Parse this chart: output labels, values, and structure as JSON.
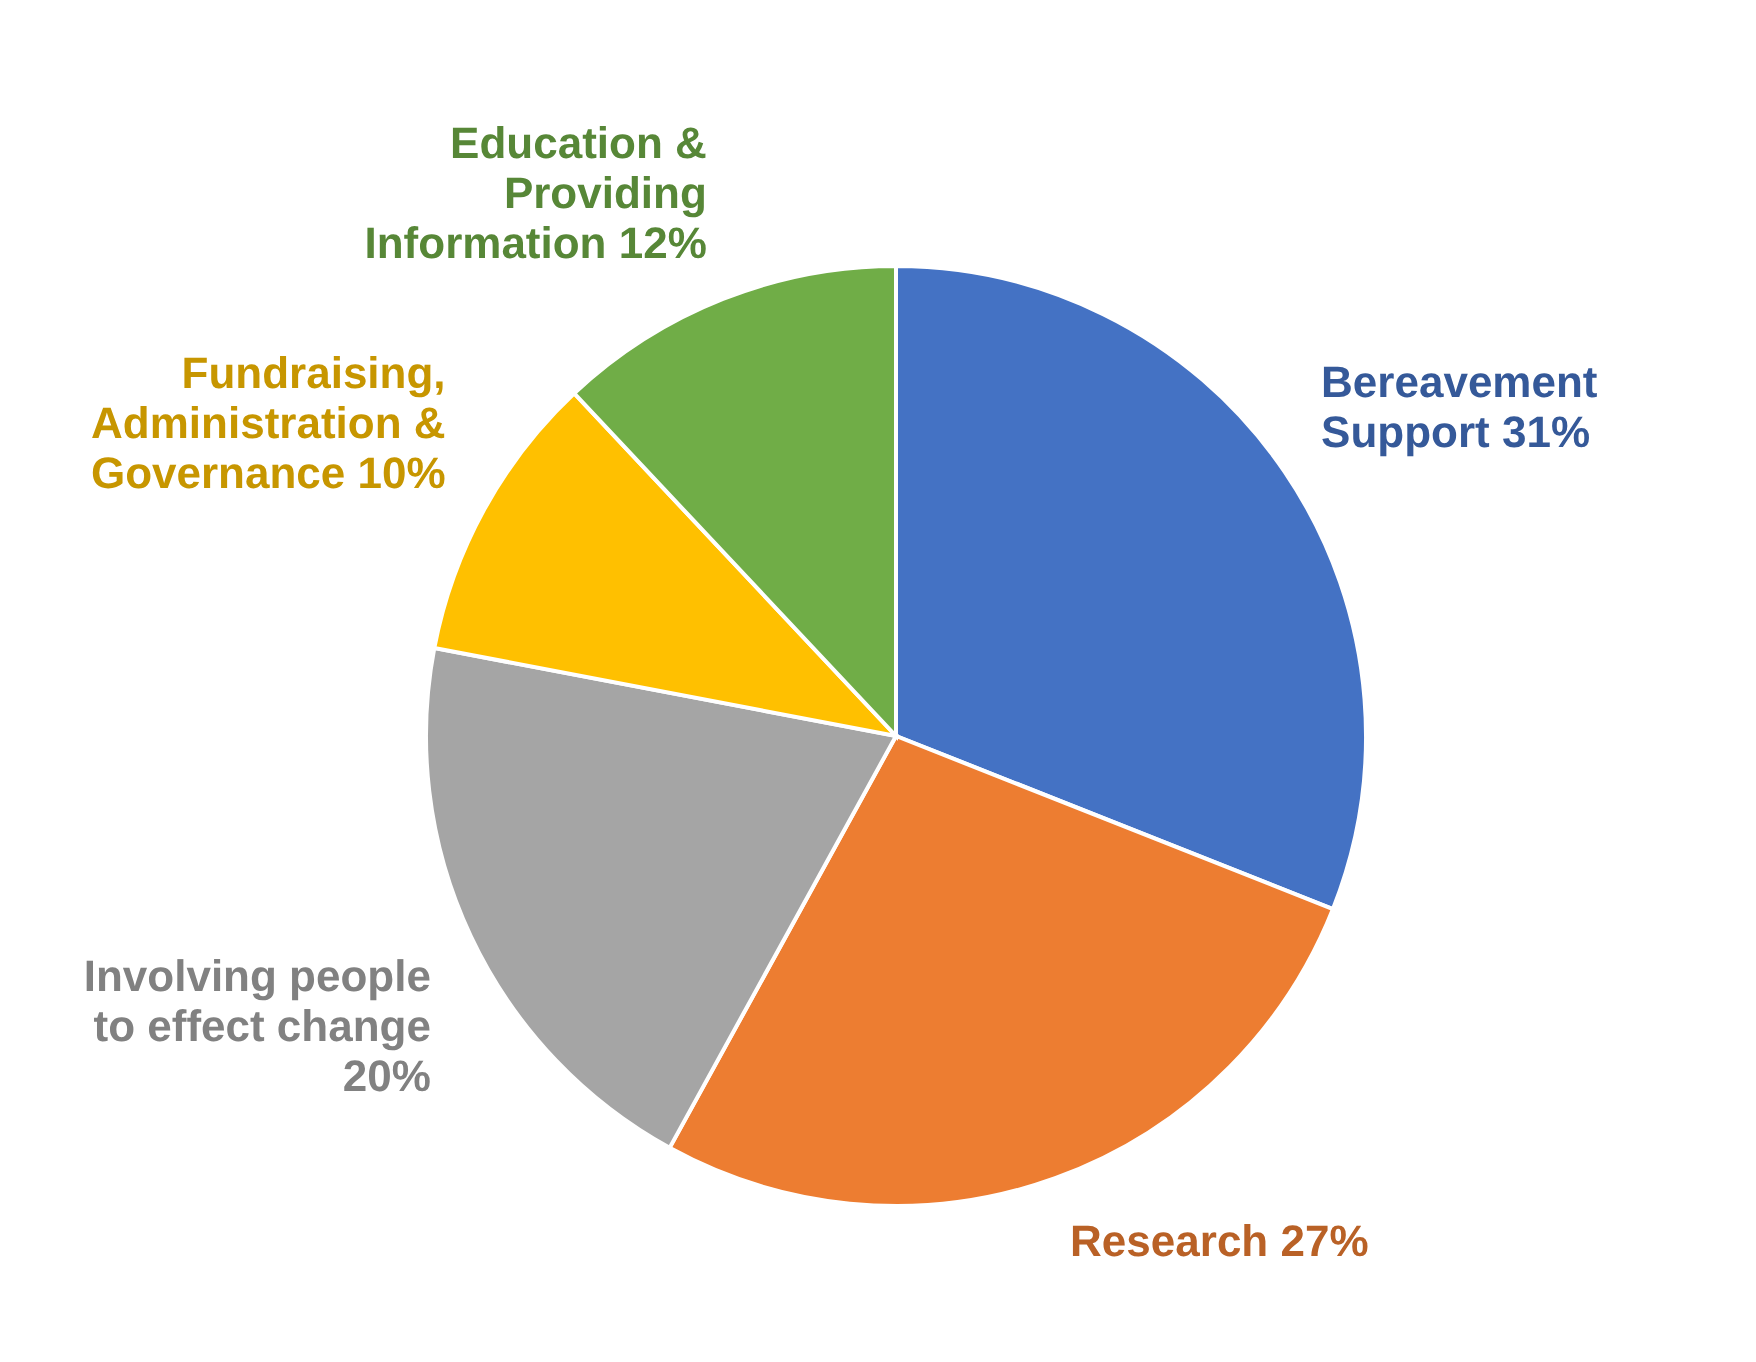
{
  "chart_data": {
    "type": "pie",
    "categories": [
      "Bereavement Support",
      "Research",
      "Involving people to effect change",
      "Fundraising, Administration & Governance",
      "Education & Providing Information"
    ],
    "values": [
      31,
      27,
      20,
      10,
      12
    ],
    "value_labels": [
      "31%",
      "27%",
      "20%",
      "10%",
      "12%"
    ],
    "colors": [
      "#4472c4",
      "#ed7d31",
      "#a5a5a5",
      "#ffc000",
      "#70ad47"
    ]
  }
}
